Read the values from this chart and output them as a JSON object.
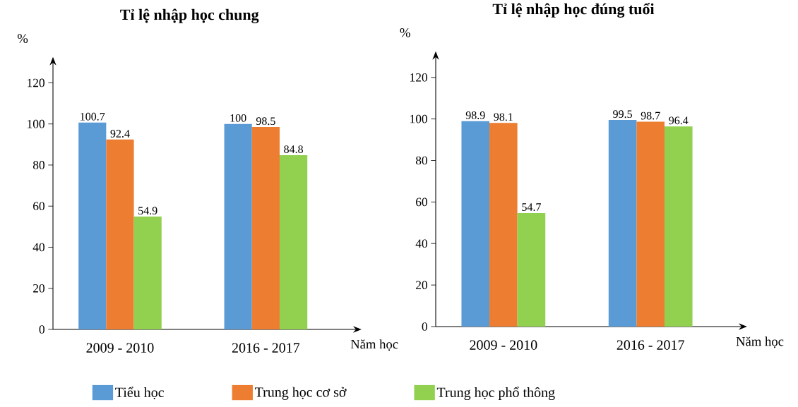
{
  "chart_data": [
    {
      "type": "bar",
      "title": "Tỉ lệ nhập học chung",
      "ylabel": "%",
      "xlabel": "Năm học",
      "categories": [
        "2009 - 2010",
        "2016 - 2017"
      ],
      "ylim": [
        0,
        130
      ],
      "yticks": [
        0,
        20,
        40,
        60,
        80,
        100,
        120
      ],
      "data_labels": true,
      "legend": "bottom",
      "series": [
        {
          "name": "Tiểu học",
          "color": "#5b9bd5",
          "values": [
            100.7,
            100
          ]
        },
        {
          "name": "Trung học cơ sở",
          "color": "#ed7d31",
          "values": [
            92.4,
            98.5
          ]
        },
        {
          "name": "Trung học phổ thông",
          "color": "#92d050",
          "values": [
            54.9,
            84.8
          ]
        }
      ]
    },
    {
      "type": "bar",
      "title": "Tỉ lệ nhập học đúng tuổi",
      "ylabel": "%",
      "xlabel": "Năm học",
      "categories": [
        "2009 - 2010",
        "2016 - 2017"
      ],
      "ylim": [
        0,
        130
      ],
      "yticks": [
        0,
        20,
        40,
        60,
        80,
        100,
        120
      ],
      "data_labels": true,
      "series": [
        {
          "color": "#5b9bd5",
          "values": [
            98.9,
            99.5
          ]
        },
        {
          "color": "#ed7d31",
          "values": [
            98.1,
            98.7
          ]
        },
        {
          "color": "#92d050",
          "values": [
            54.7,
            96.4
          ]
        }
      ]
    }
  ]
}
